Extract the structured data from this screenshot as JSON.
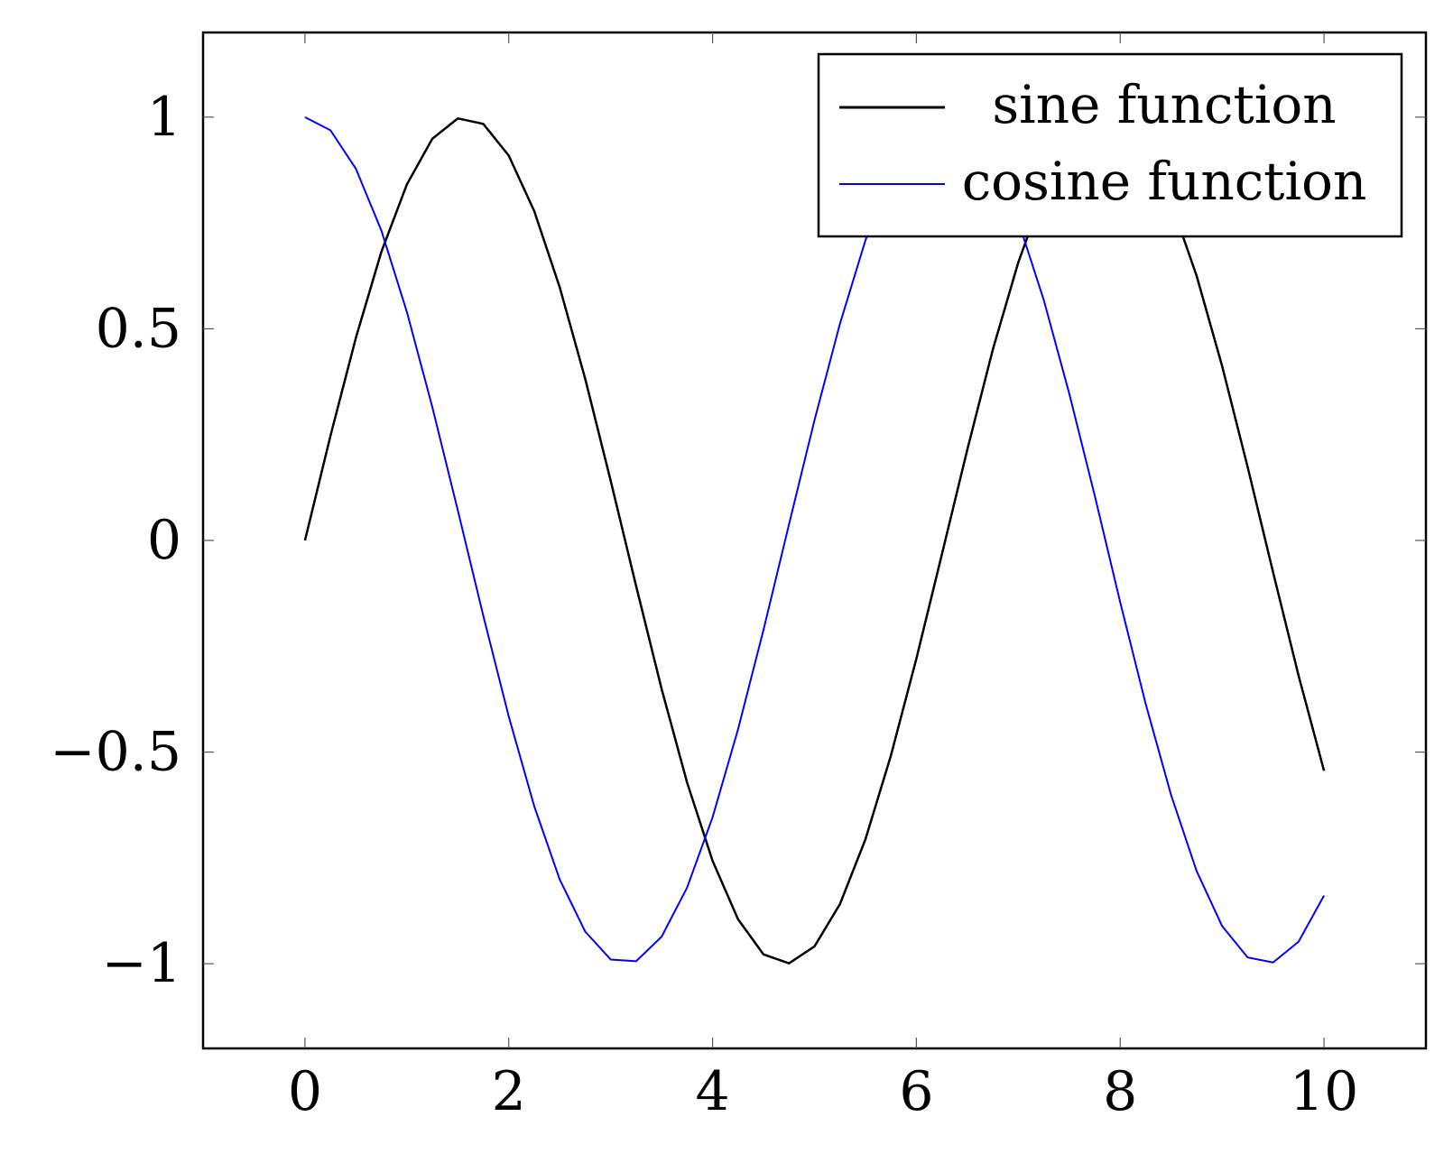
{
  "chart_data": {
    "type": "line",
    "title": "",
    "xlabel": "",
    "ylabel": "",
    "xlim": [
      -1,
      11
    ],
    "ylim": [
      -1.2,
      1.2
    ],
    "x_ticks": [
      0,
      2,
      4,
      6,
      8,
      10
    ],
    "y_ticks": [
      1,
      0.5,
      0,
      -0.5,
      -1
    ],
    "x_tick_labels": [
      "0",
      "2",
      "4",
      "6",
      "8",
      "10"
    ],
    "y_tick_labels": [
      "1",
      "0.5",
      "0",
      "−0.5",
      "−1"
    ],
    "grid": false,
    "legend_position": "top-right",
    "series": [
      {
        "name": "sine function",
        "color": "#000000",
        "x": [
          0,
          0.25,
          0.5,
          0.75,
          1,
          1.25,
          1.5,
          1.75,
          2,
          2.25,
          2.5,
          2.75,
          3,
          3.25,
          3.5,
          3.75,
          4,
          4.25,
          4.5,
          4.75,
          5,
          5.25,
          5.5,
          5.75,
          6,
          6.25,
          6.5,
          6.75,
          7,
          7.25,
          7.5,
          7.75,
          8,
          8.25,
          8.5,
          8.75,
          9,
          9.25,
          9.5,
          9.75,
          10
        ],
        "y": [
          0,
          0.247,
          0.479,
          0.682,
          0.841,
          0.949,
          0.997,
          0.984,
          0.909,
          0.778,
          0.598,
          0.382,
          0.141,
          -0.108,
          -0.351,
          -0.572,
          -0.757,
          -0.895,
          -0.978,
          -0.999,
          -0.959,
          -0.859,
          -0.706,
          -0.508,
          -0.279,
          -0.033,
          0.215,
          0.451,
          0.657,
          0.823,
          0.938,
          0.995,
          0.989,
          0.923,
          0.798,
          0.625,
          0.412,
          0.174,
          -0.075,
          -0.319,
          -0.544
        ]
      },
      {
        "name": "cosine function",
        "color": "#0000ff",
        "x": [
          0,
          0.25,
          0.5,
          0.75,
          1,
          1.25,
          1.5,
          1.75,
          2,
          2.25,
          2.5,
          2.75,
          3,
          3.25,
          3.5,
          3.75,
          4,
          4.25,
          4.5,
          4.75,
          5,
          5.25,
          5.5,
          5.75,
          6,
          6.25,
          6.5,
          6.75,
          7,
          7.25,
          7.5,
          7.75,
          8,
          8.25,
          8.5,
          8.75,
          9,
          9.25,
          9.5,
          9.75,
          10
        ],
        "y": [
          1,
          0.969,
          0.878,
          0.732,
          0.54,
          0.315,
          0.071,
          -0.178,
          -0.416,
          -0.628,
          -0.801,
          -0.924,
          -0.99,
          -0.994,
          -0.936,
          -0.82,
          -0.654,
          -0.446,
          -0.211,
          0.038,
          0.284,
          0.512,
          0.709,
          0.861,
          0.96,
          0.999,
          0.977,
          0.893,
          0.754,
          0.568,
          0.347,
          0.106,
          -0.146,
          -0.386,
          -0.602,
          -0.781,
          -0.911,
          -0.985,
          -0.997,
          -0.948,
          -0.839
        ]
      }
    ]
  }
}
